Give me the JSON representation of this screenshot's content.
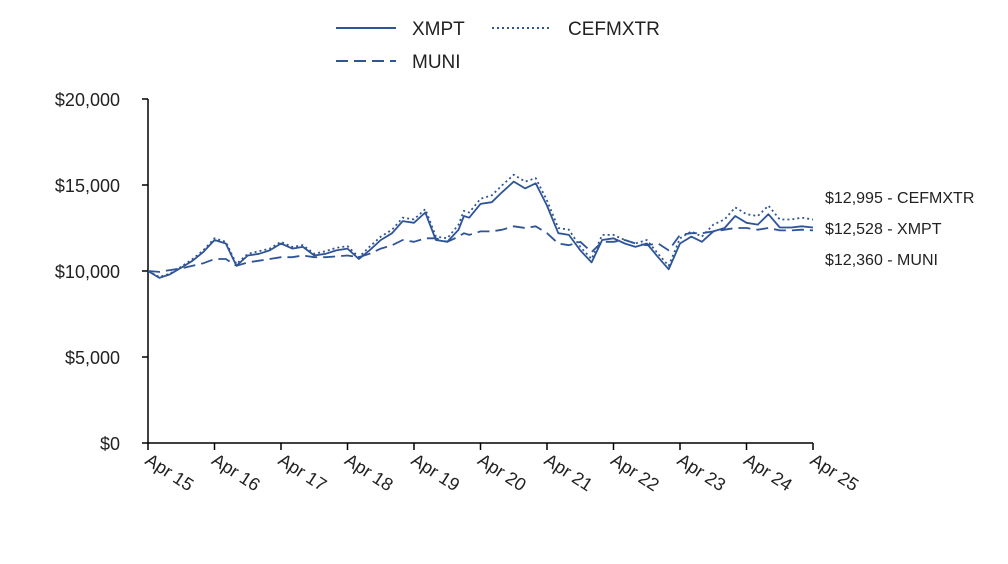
{
  "chart_data": {
    "type": "line",
    "title": "",
    "xlabel": "",
    "ylabel": "",
    "ylim": [
      0,
      20000
    ],
    "yticks": [
      "$0",
      "$5,000",
      "$10,000",
      "$15,000",
      "$20,000"
    ],
    "ytick_values": [
      0,
      5000,
      10000,
      15000,
      20000
    ],
    "xticks": [
      "Apr 15",
      "Apr 16",
      "Apr 17",
      "Apr 18",
      "Apr 19",
      "Apr 20",
      "Apr 21",
      "Apr 22",
      "Apr 23",
      "Apr 24",
      "Apr 25"
    ],
    "xlim": [
      2015.25,
      2025.25
    ],
    "grid": false,
    "legend_position": "top-center",
    "colors": {
      "line": "#2f5597",
      "axis": "#000000"
    },
    "x": [
      2015.25,
      2015.42,
      2015.58,
      2015.75,
      2015.92,
      2016.08,
      2016.25,
      2016.42,
      2016.58,
      2016.75,
      2016.92,
      2017.08,
      2017.25,
      2017.42,
      2017.58,
      2017.75,
      2017.92,
      2018.08,
      2018.25,
      2018.42,
      2018.58,
      2018.75,
      2018.92,
      2019.08,
      2019.25,
      2019.42,
      2019.58,
      2019.75,
      2019.92,
      2020.0,
      2020.08,
      2020.25,
      2020.42,
      2020.58,
      2020.75,
      2020.92,
      2021.08,
      2021.25,
      2021.42,
      2021.58,
      2021.75,
      2021.92,
      2022.08,
      2022.25,
      2022.42,
      2022.58,
      2022.75,
      2022.92,
      2023.08,
      2023.25,
      2023.42,
      2023.58,
      2023.75,
      2023.92,
      2024.08,
      2024.25,
      2024.42,
      2024.58,
      2024.75,
      2024.92,
      2025.08,
      2025.25
    ],
    "series": [
      {
        "name": "XMPT",
        "style": "solid",
        "values": [
          10000,
          9600,
          9800,
          10200,
          10600,
          11100,
          11800,
          11600,
          10300,
          10900,
          11000,
          11200,
          11600,
          11300,
          11400,
          10900,
          11000,
          11200,
          11300,
          10700,
          11200,
          11800,
          12200,
          12900,
          12800,
          13400,
          11800,
          11700,
          12400,
          13200,
          13100,
          13900,
          14000,
          14600,
          15200,
          14800,
          15100,
          13800,
          12200,
          12100,
          11200,
          10500,
          11800,
          11900,
          11600,
          11400,
          11600,
          10800,
          10100,
          11600,
          12000,
          11700,
          12300,
          12500,
          13200,
          12800,
          12700,
          13300,
          12528,
          12528,
          12600,
          12528
        ]
      },
      {
        "name": "CEFMXTR",
        "style": "dotted",
        "values": [
          10000,
          9650,
          9850,
          10250,
          10700,
          11200,
          11900,
          11700,
          10400,
          11000,
          11150,
          11300,
          11700,
          11400,
          11500,
          11000,
          11150,
          11350,
          11450,
          10800,
          11400,
          12000,
          12400,
          13100,
          13000,
          13600,
          12000,
          11900,
          12700,
          13500,
          13400,
          14200,
          14400,
          15000,
          15600,
          15200,
          15400,
          14100,
          12500,
          12400,
          11400,
          10700,
          12100,
          12100,
          11800,
          11600,
          11800,
          11000,
          10300,
          11900,
          12300,
          12000,
          12700,
          13000,
          13700,
          13300,
          13200,
          13800,
          12995,
          12995,
          13100,
          12995
        ]
      },
      {
        "name": "MUNI",
        "style": "dashed",
        "values": [
          10000,
          9950,
          10050,
          10150,
          10300,
          10450,
          10700,
          10700,
          10300,
          10500,
          10600,
          10700,
          10800,
          10800,
          10900,
          10800,
          10800,
          10850,
          10900,
          10800,
          11000,
          11300,
          11500,
          11800,
          11700,
          11900,
          11900,
          11700,
          12000,
          12200,
          12100,
          12300,
          12300,
          12400,
          12600,
          12500,
          12600,
          12200,
          11600,
          11500,
          11700,
          11100,
          11700,
          11700,
          11800,
          11600,
          11500,
          11600,
          11200,
          12100,
          12200,
          12200,
          12300,
          12400,
          12500,
          12500,
          12400,
          12500,
          12360,
          12360,
          12400,
          12360
        ]
      }
    ],
    "legend": [
      {
        "label": "XMPT",
        "style": "solid"
      },
      {
        "label": "CEFMXTR",
        "style": "dotted"
      },
      {
        "label": "MUNI",
        "style": "dashed"
      }
    ],
    "end_labels": [
      {
        "text": "$12,995 - CEFMXTR"
      },
      {
        "text": "$12,528 - XMPT"
      },
      {
        "text": "$12,360 - MUNI"
      }
    ]
  }
}
